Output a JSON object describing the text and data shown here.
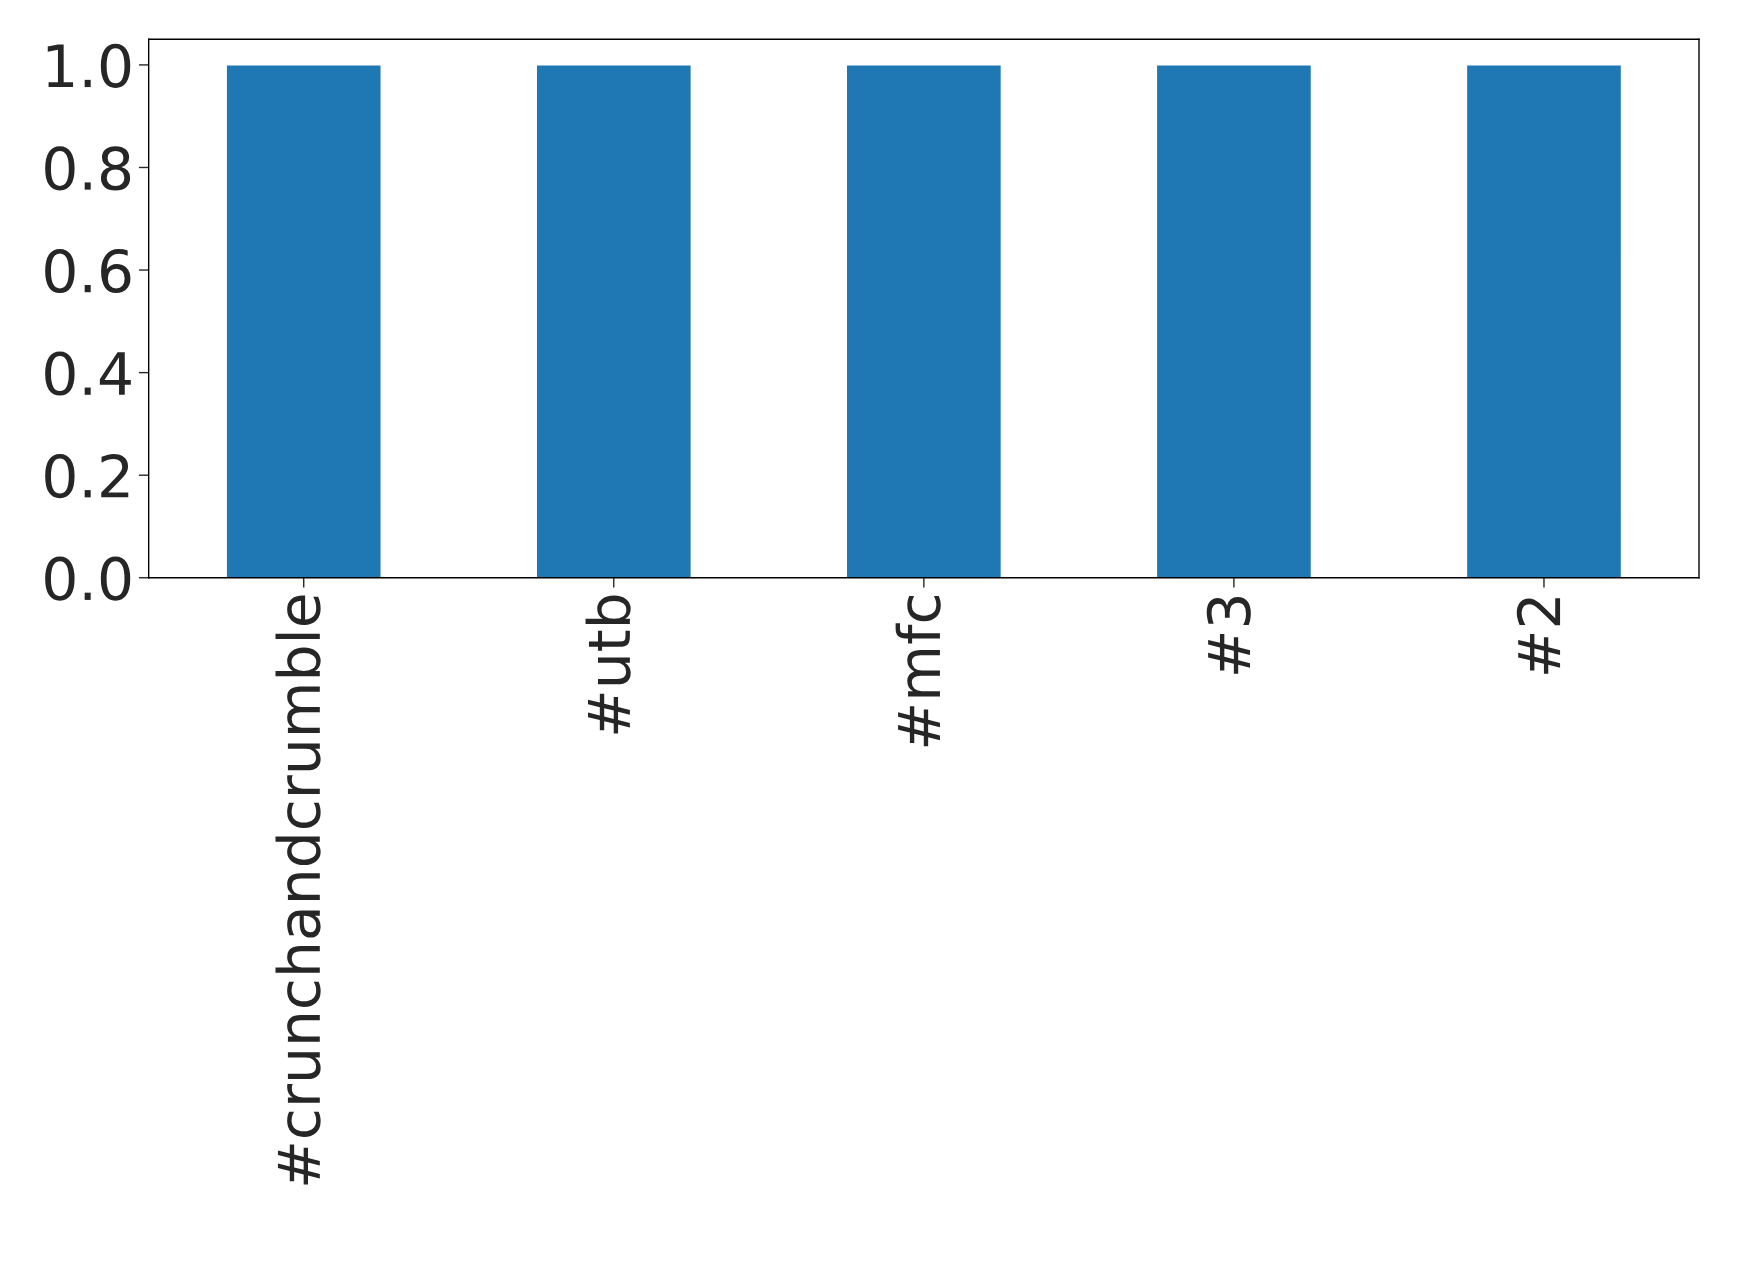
{
  "chart_data": {
    "type": "bar",
    "categories": [
      "#crunchandcrumble",
      "#utb",
      "#mfc",
      "#3",
      "#2"
    ],
    "values": [
      1,
      1,
      1,
      1,
      1
    ],
    "color": "#1f77b4",
    "ylim": [
      0,
      1.05
    ],
    "yticks": [
      {
        "value": 0,
        "label": "0.0"
      },
      {
        "value": 0.2,
        "label": "0.2"
      },
      {
        "value": 0.4,
        "label": "0.4"
      },
      {
        "value": 0.6,
        "label": "0.6"
      },
      {
        "value": 0.8,
        "label": "0.8"
      },
      {
        "value": 1,
        "label": "1.0"
      }
    ],
    "grid": false,
    "legend": false
  }
}
